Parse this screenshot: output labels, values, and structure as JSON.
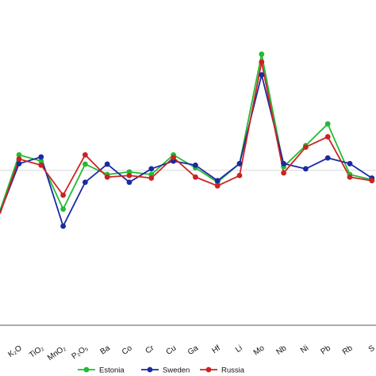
{
  "chart_data": {
    "type": "line",
    "categories": [
      "K₂O",
      "TiO₂",
      "MnO₂",
      "P₂O₅",
      "Ba",
      "Co",
      "Cr",
      "Cu",
      "Ga",
      "Hf",
      "Li",
      "Mo",
      "Nb",
      "Ni",
      "Pb",
      "Rb",
      "S"
    ],
    "first_value": {
      "Estonia": 0.42,
      "Sweden": 0.38,
      "Russia": 0.36
    },
    "series": [
      {
        "name": "Estonia",
        "color": "#22bb33",
        "values": [
          1.5,
          1.38,
          0.45,
          1.32,
          1.12,
          1.17,
          1.12,
          1.5,
          1.25,
          0.97,
          1.33,
          3.45,
          1.27,
          1.68,
          2.1,
          1.12,
          1.02
        ]
      },
      {
        "name": "Sweden",
        "color": "#1a2aa0",
        "values": [
          1.33,
          1.46,
          0.12,
          0.97,
          1.32,
          0.97,
          1.23,
          1.38,
          1.3,
          1.0,
          1.33,
          3.05,
          1.33,
          1.23,
          1.44,
          1.33,
          1.05
        ]
      },
      {
        "name": "Russia",
        "color": "#cc2222",
        "values": [
          1.42,
          1.3,
          0.72,
          1.5,
          1.07,
          1.1,
          1.05,
          1.45,
          1.07,
          0.9,
          1.1,
          3.3,
          1.15,
          1.65,
          1.85,
          1.07,
          1.0
        ]
      }
    ],
    "ylim": [
      -1.8,
      4.5
    ],
    "reference_line": 1.2,
    "grid": false,
    "legend_position": "bottom-center",
    "title": "",
    "xlabel": "",
    "ylabel": ""
  }
}
